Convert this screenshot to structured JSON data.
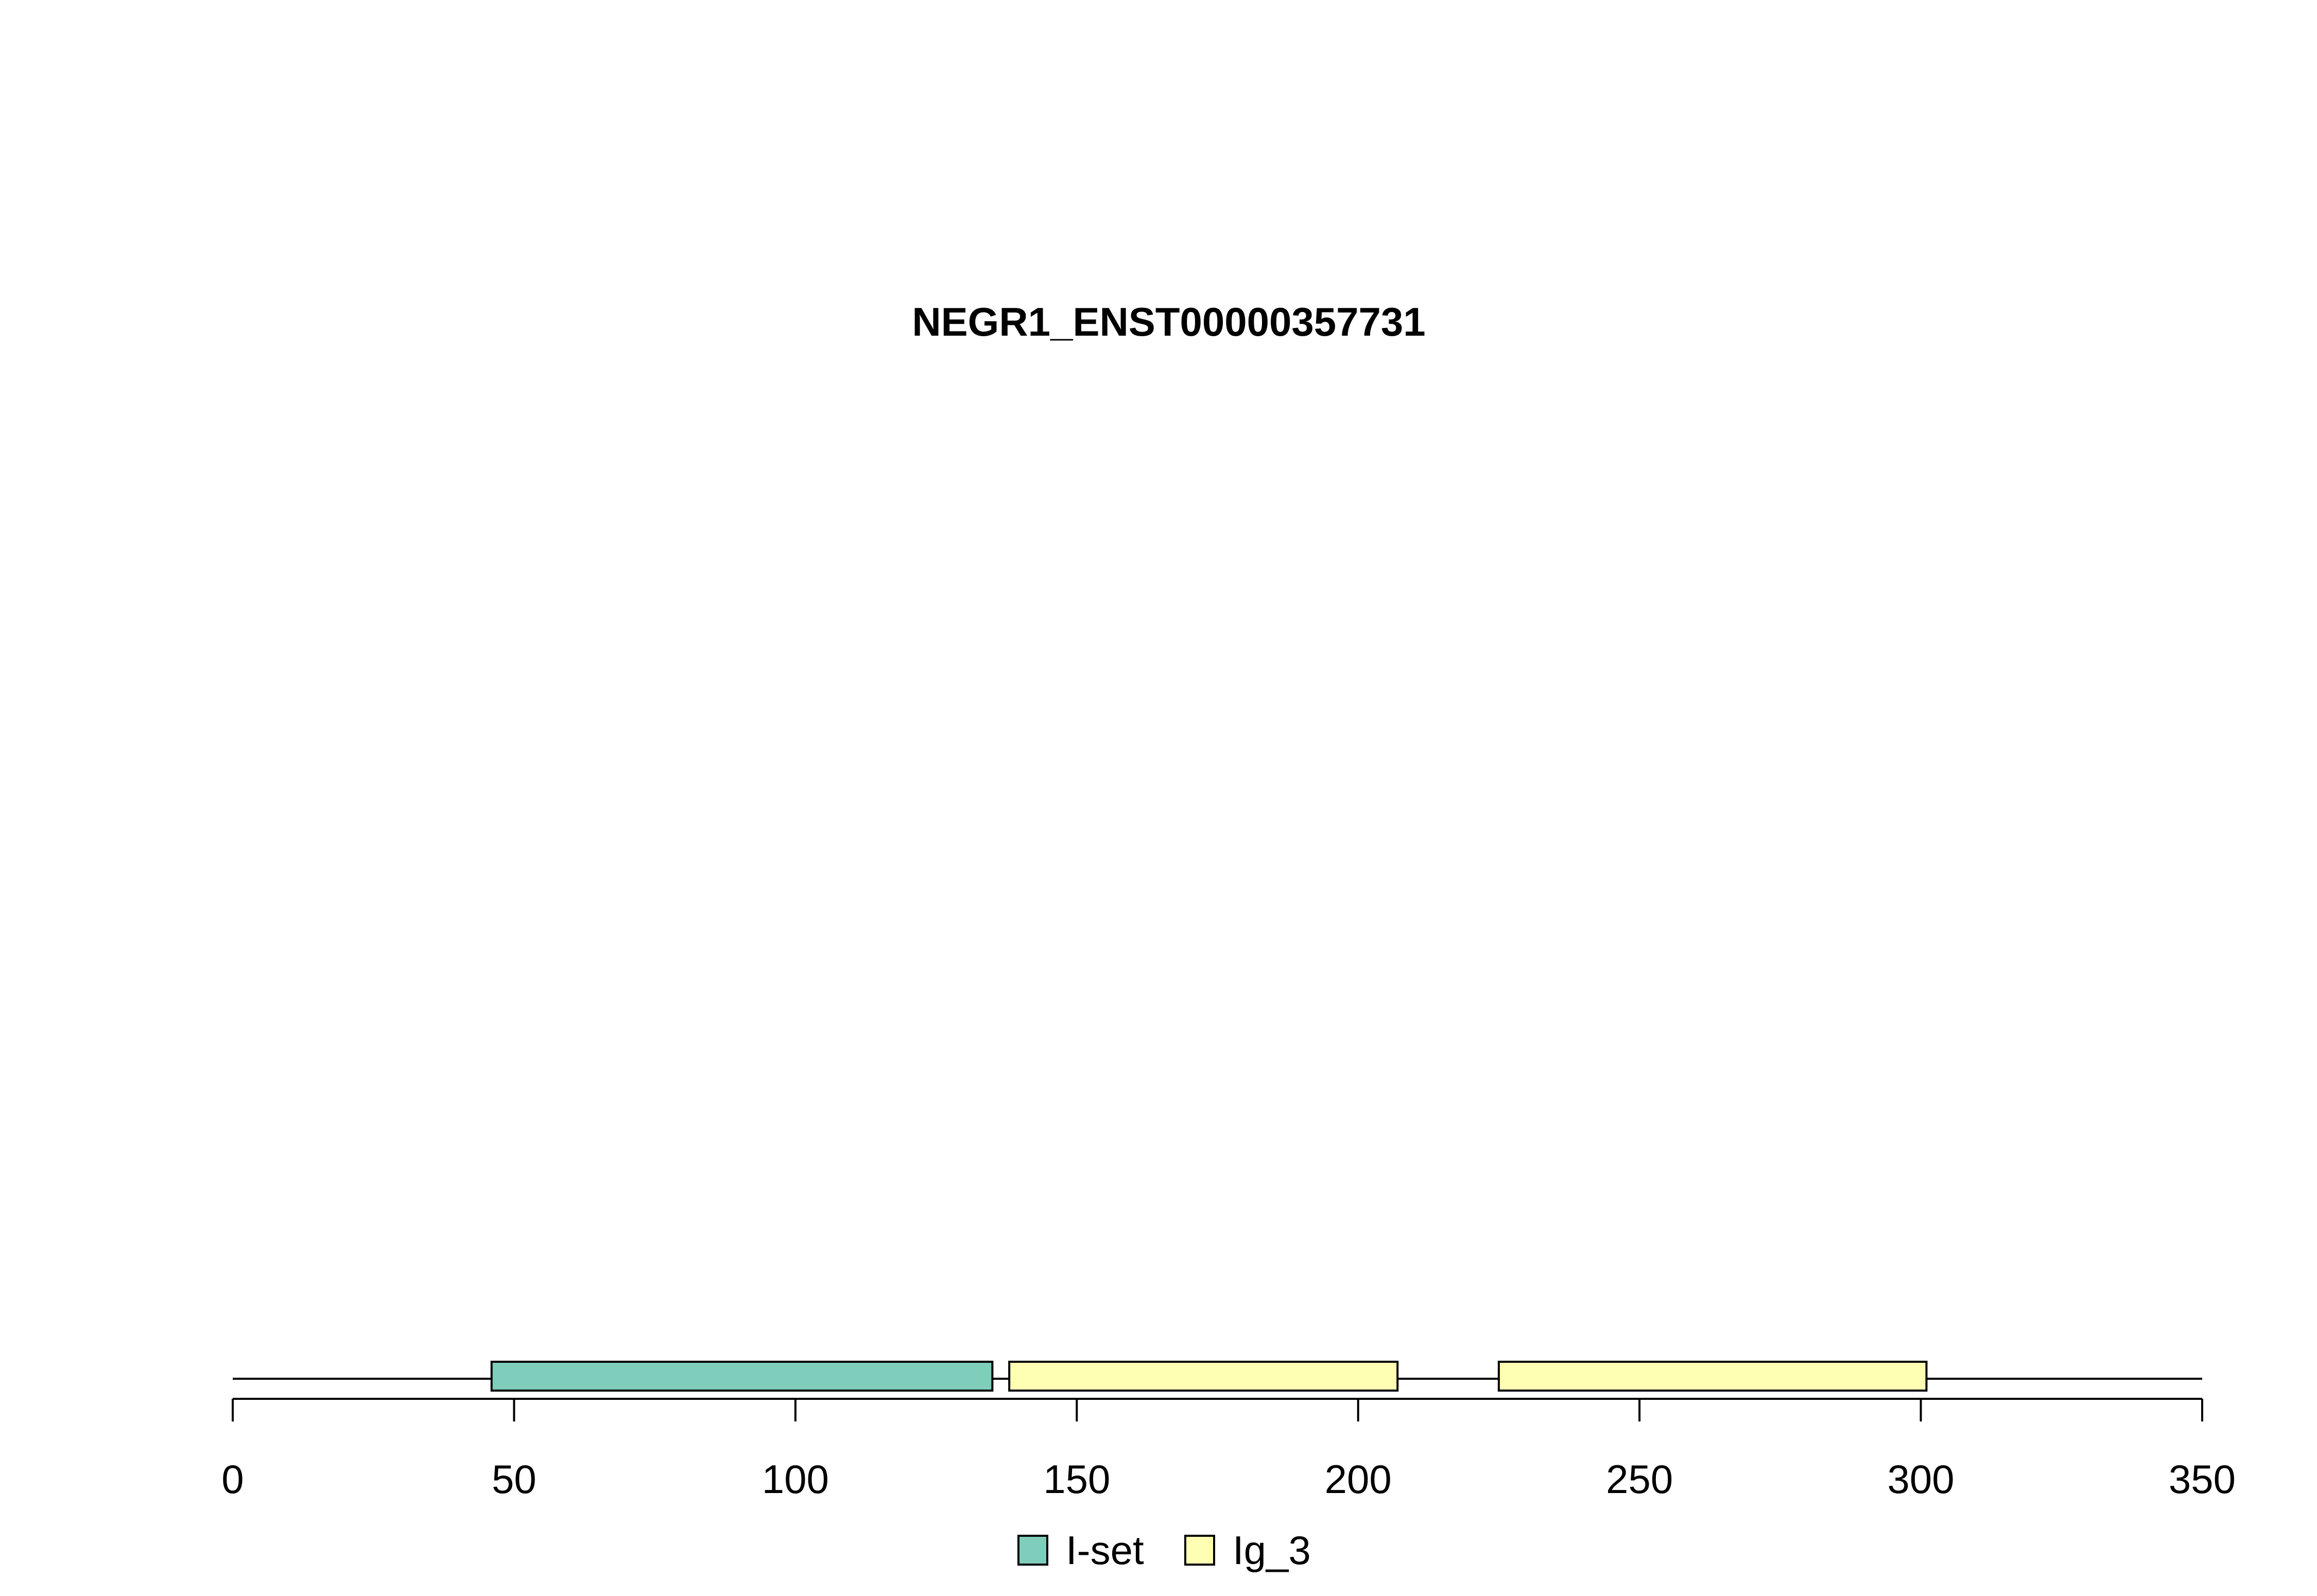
{
  "chart_data": {
    "type": "domain-track",
    "title": "NEGR1_ENST00000357731",
    "xlim": [
      0,
      350
    ],
    "protein_length": 350,
    "x_ticks": [
      0,
      50,
      100,
      150,
      200,
      250,
      300,
      350
    ],
    "tick_labels": [
      "0",
      "50",
      "100",
      "150",
      "200",
      "250",
      "300",
      "350"
    ],
    "domains": [
      {
        "name": "I-set",
        "start": 46,
        "end": 135
      },
      {
        "name": "Ig_3",
        "start": 138,
        "end": 207
      },
      {
        "name": "Ig_3",
        "start": 225,
        "end": 301
      }
    ],
    "legend": [
      {
        "label": "I-set",
        "color": "#7fcdbb"
      },
      {
        "label": "Ig_3",
        "color": "#ffffb3"
      }
    ],
    "legend_position": "bottom"
  }
}
